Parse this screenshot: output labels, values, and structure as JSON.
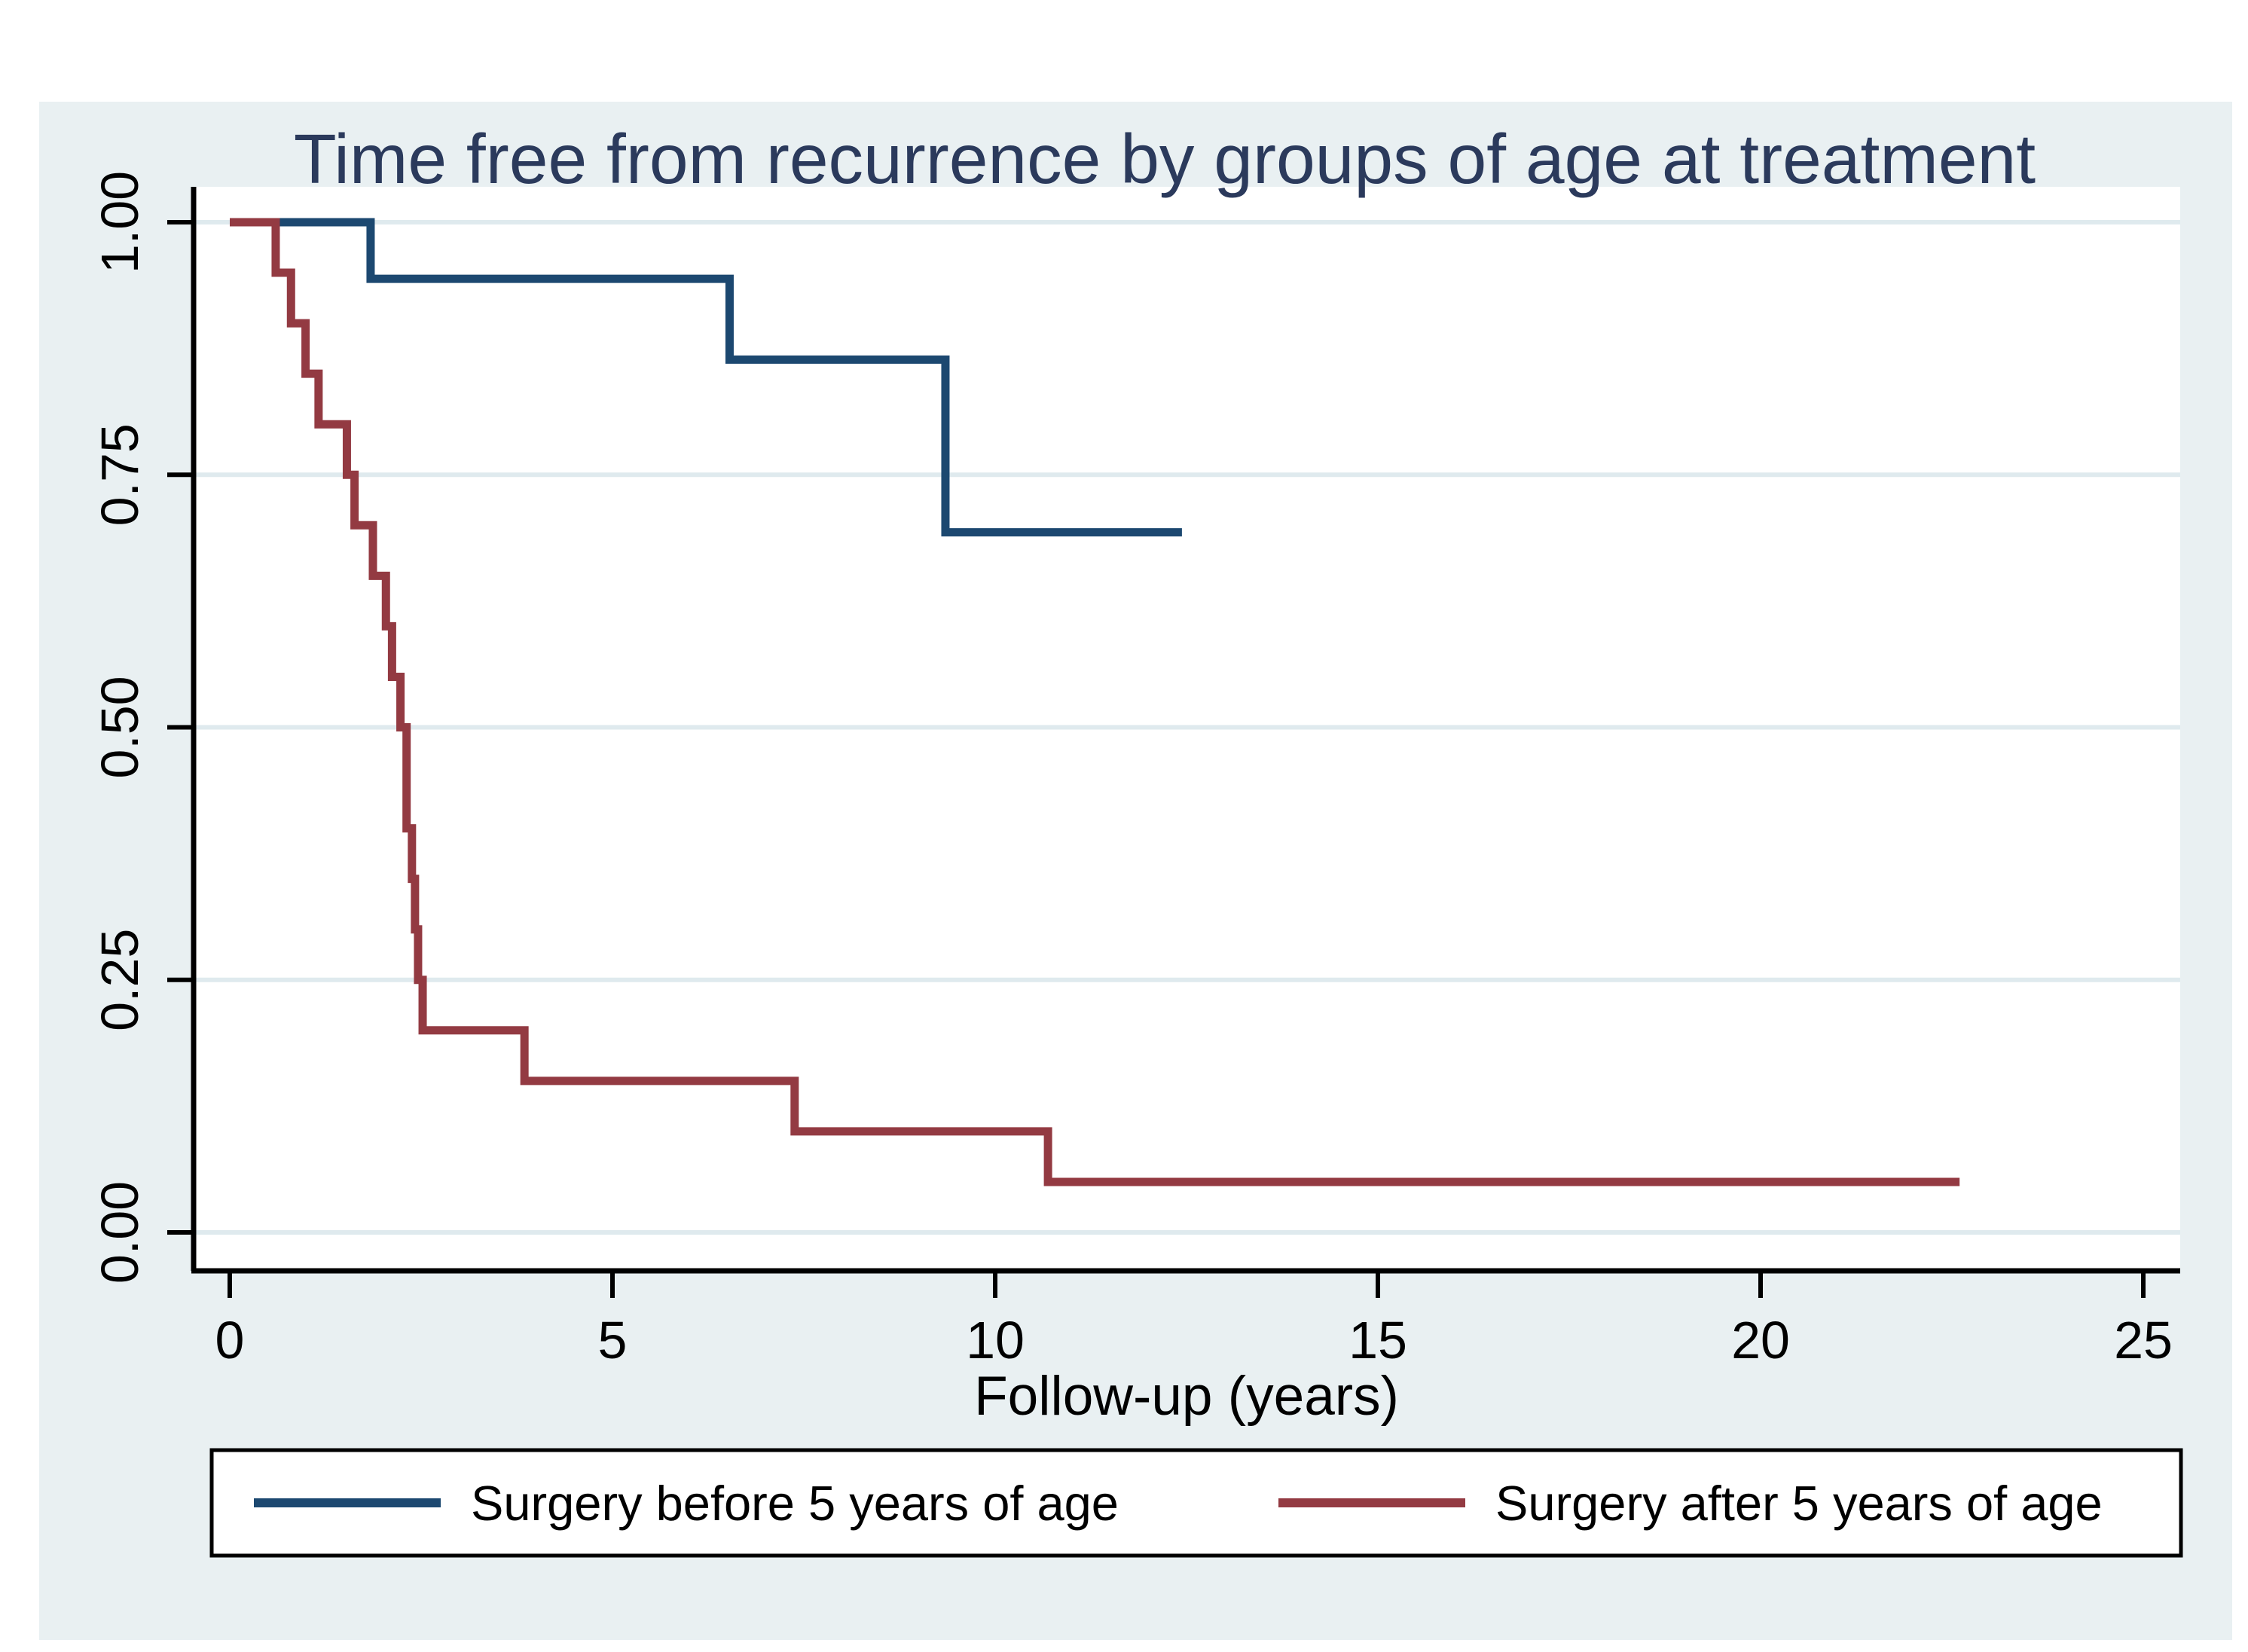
{
  "figure": {
    "title": "Time free from recurrence by groups of age at treatment",
    "title_color": "#2b3a5c",
    "background_color": "#e9f0f2",
    "plot_background_color": "#ffffff",
    "gridline_color": "#dfeaee",
    "axis_color": "#000000"
  },
  "x_axis": {
    "label": "Follow-up (years)",
    "tick_labels": [
      "0",
      "5",
      "10",
      "15",
      "20",
      "25"
    ],
    "tick_values": [
      0,
      5,
      10,
      15,
      20,
      25
    ]
  },
  "y_axis": {
    "tick_labels": [
      "0.00",
      "0.25",
      "0.50",
      "0.75",
      "1.00"
    ],
    "tick_values": [
      0,
      0.25,
      0.5,
      0.75,
      1.0
    ]
  },
  "legend": {
    "entries": [
      {
        "label": "Surgery before 5 years of age",
        "color": "#1c4870"
      },
      {
        "label": "Surgery after 5 years of age",
        "color": "#933a42"
      }
    ]
  },
  "chart_data": {
    "type": "line",
    "subtype": "kaplan-meier-step",
    "title": "Time free from recurrence by groups of age at treatment",
    "xlabel": "Follow-up (years)",
    "ylabel": "",
    "xlim": [
      0,
      25.5
    ],
    "ylim": [
      0,
      1.0
    ],
    "x_ticks": [
      0,
      5,
      10,
      15,
      20,
      25
    ],
    "y_ticks": [
      0,
      0.25,
      0.5,
      0.75,
      1.0
    ],
    "grid": "horizontal-only",
    "legend_position": "bottom",
    "series": [
      {
        "name": "Surgery before 5 years of age",
        "color": "#1c4870",
        "start": [
          0,
          1.0
        ],
        "steps": [
          [
            1.84,
            0.944
          ],
          [
            6.53,
            0.864
          ],
          [
            9.35,
            0.693
          ]
        ],
        "end_x": 12.44
      },
      {
        "name": "Surgery after 5 years of age",
        "color": "#933a42",
        "start": [
          0,
          1.0
        ],
        "steps": [
          [
            0.6,
            0.95
          ],
          [
            0.8,
            0.9
          ],
          [
            0.99,
            0.85
          ],
          [
            1.16,
            0.8
          ],
          [
            1.53,
            0.75
          ],
          [
            1.63,
            0.7
          ],
          [
            1.87,
            0.65
          ],
          [
            2.04,
            0.6
          ],
          [
            2.12,
            0.55
          ],
          [
            2.23,
            0.5
          ],
          [
            2.31,
            0.4
          ],
          [
            2.38,
            0.35
          ],
          [
            2.42,
            0.3
          ],
          [
            2.46,
            0.25
          ],
          [
            2.52,
            0.2
          ],
          [
            3.85,
            0.15
          ],
          [
            7.38,
            0.1
          ],
          [
            10.69,
            0.05
          ]
        ],
        "end_x": 22.6
      }
    ]
  }
}
